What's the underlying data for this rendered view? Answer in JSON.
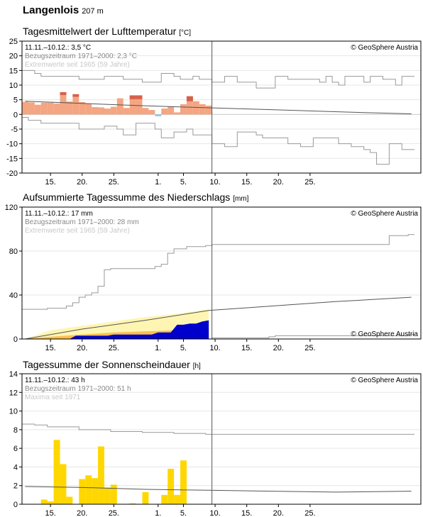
{
  "station": {
    "name": "Langenlois",
    "altitude": "207 m"
  },
  "copyright": "© GeoSphere Austria",
  "x_tick_labels": [
    "15.",
    "20.",
    "25.",
    "1.",
    "5.",
    "10.",
    "15.",
    "20.",
    "25."
  ],
  "chart_data": [
    {
      "id": "temperature",
      "type": "bar",
      "title": "Tagesmittelwert der Lufttemperatur",
      "unit": "[°C]",
      "ylim": [
        -20,
        25
      ],
      "yticks": [
        -20,
        -15,
        -10,
        -5,
        0,
        5,
        10,
        15,
        20,
        25
      ],
      "summary": "11.11.–10.12.: 3,5 °C",
      "reference": "Bezugszeitraum 1971–2000: 2,3 °C",
      "extremes": "Extremwerte seit 1965 (59 Jahre)",
      "colors": {
        "above": "#f4a582",
        "below": "#92c5de",
        "exceed": "#d6604d",
        "ref": "#555555",
        "extreme": "#999999"
      },
      "x": [
        11,
        12,
        13,
        14,
        15,
        16,
        17,
        18,
        19,
        20,
        21,
        22,
        23,
        24,
        25,
        26,
        27,
        28,
        29,
        30,
        31,
        32,
        33,
        34,
        35,
        36,
        37,
        38,
        39,
        40
      ],
      "values": [
        4.3,
        4.1,
        3.3,
        4.0,
        4.0,
        3.7,
        7.6,
        4.4,
        6.9,
        4.2,
        3.6,
        2.5,
        2.4,
        2.0,
        2.6,
        5.5,
        2.2,
        6.5,
        6.5,
        2.2,
        1.5,
        -0.6,
        2.0,
        2.6,
        0.7,
        3.5,
        6.2,
        4.5,
        3.5,
        3.0
      ],
      "exceed_top": [
        null,
        null,
        null,
        null,
        null,
        null,
        7.6,
        null,
        6.9,
        null,
        null,
        null,
        null,
        null,
        null,
        null,
        null,
        6.5,
        6.5,
        null,
        null,
        null,
        null,
        null,
        null,
        null,
        6.2,
        null,
        null,
        null
      ],
      "exceed_bottom": [
        null,
        null,
        null,
        null,
        null,
        null,
        6.6,
        null,
        6.0,
        null,
        null,
        null,
        null,
        null,
        null,
        null,
        null,
        5.2,
        5.2,
        null,
        null,
        null,
        null,
        null,
        null,
        null,
        4.5,
        null,
        null,
        null
      ],
      "ref_x": [
        11,
        17,
        23,
        29,
        35,
        41,
        47,
        53,
        59,
        65,
        72
      ],
      "ref_values": [
        4.5,
        4.0,
        3.5,
        3.0,
        2.6,
        2.2,
        1.8,
        1.4,
        1.0,
        0.6,
        0.2
      ],
      "max_x": [
        11,
        12,
        13,
        14,
        15,
        16,
        17,
        18,
        19,
        20,
        21,
        22,
        23,
        24,
        25,
        26,
        27,
        28,
        29,
        30,
        31,
        32,
        33,
        34,
        35,
        36,
        37,
        38,
        39,
        40,
        41,
        42,
        43,
        44,
        45,
        46,
        47,
        48,
        49,
        50,
        51,
        52,
        53,
        54,
        55,
        56,
        57,
        58,
        59,
        60,
        61,
        62,
        63,
        64,
        65,
        66,
        67,
        68,
        69,
        70,
        71,
        72
      ],
      "max_values": [
        15,
        15,
        14,
        13,
        13,
        13,
        13,
        13,
        13,
        12,
        12,
        12,
        12,
        13,
        13,
        13,
        12,
        12,
        12,
        11,
        11,
        11,
        14,
        14,
        13,
        12,
        12,
        13,
        12,
        12,
        11,
        11,
        13,
        13,
        11,
        11,
        11,
        9,
        9,
        9,
        13,
        13,
        12,
        12,
        12,
        12,
        12,
        11,
        13,
        11,
        10,
        13,
        13,
        13,
        11,
        13,
        13,
        12,
        12,
        10,
        13,
        13
      ],
      "min_x": [
        11,
        12,
        13,
        14,
        15,
        16,
        17,
        18,
        19,
        20,
        21,
        22,
        23,
        24,
        25,
        26,
        27,
        28,
        29,
        30,
        31,
        32,
        33,
        34,
        35,
        36,
        37,
        38,
        39,
        40,
        41,
        42,
        43,
        44,
        45,
        46,
        47,
        48,
        49,
        50,
        51,
        52,
        53,
        54,
        55,
        56,
        57,
        58,
        59,
        60,
        61,
        62,
        63,
        64,
        65,
        66,
        67,
        68,
        69,
        70,
        71,
        72
      ],
      "min_values": [
        -1,
        -2,
        -2,
        -3,
        -3,
        -3,
        -3,
        -3,
        -3,
        -5,
        -5,
        -5,
        -5,
        -4,
        -4,
        -5,
        -7,
        -7,
        -3,
        -3,
        -3,
        -5,
        -8,
        -8,
        -6,
        -6,
        -5,
        -7,
        -7,
        -7,
        -10,
        -10,
        -11,
        -11,
        -6,
        -6,
        -6,
        -7,
        -8,
        -8,
        -8,
        -8,
        -10,
        -10,
        -11,
        -11,
        -8,
        -8,
        -8,
        -8,
        -10,
        -10,
        -11,
        -11,
        -12,
        -13,
        -17,
        -17,
        -10,
        -10,
        -12,
        -12
      ]
    },
    {
      "id": "precipitation",
      "type": "area",
      "title": "Aufsummierte Tagessumme des Niederschlags",
      "unit": "[mm]",
      "ylim": [
        0,
        120
      ],
      "yticks": [
        0,
        40,
        80,
        120
      ],
      "summary": "11.11.–10.12.: 17 mm",
      "reference": "Bezugszeitraum 1971–2000: 28 mm",
      "extremes": "Extremwerte seit 1965 (59 Jahre)",
      "colors": {
        "current": "#0000cc",
        "band_outer": "#fff5b3",
        "band_inner": "#fdbf4e",
        "ref": "#555555",
        "extreme": "#999999"
      },
      "current_x": [
        11,
        18,
        19,
        24,
        25,
        31,
        32,
        34,
        35,
        36,
        37,
        38,
        39,
        40
      ],
      "current_values": [
        0,
        0,
        3,
        3,
        4,
        4,
        6,
        6,
        13,
        13,
        14,
        14,
        16,
        17
      ],
      "band_upper_x": [
        11,
        15,
        20,
        25,
        30,
        35,
        40
      ],
      "band_upper_values": [
        0,
        8,
        12,
        16,
        20,
        23,
        27
      ],
      "band_lower_x": [
        11,
        15,
        20,
        25,
        30,
        35,
        40
      ],
      "band_lower_values": [
        0,
        2,
        4,
        6,
        7,
        8,
        9
      ],
      "ref_x": [
        11,
        20,
        30,
        40,
        50,
        60,
        72
      ],
      "ref_values": [
        0,
        9,
        17,
        26,
        30,
        34,
        38
      ],
      "max_x": [
        11,
        14,
        15,
        18,
        19,
        20,
        21,
        22,
        23,
        24,
        25,
        32,
        33,
        34,
        35,
        36,
        37,
        40,
        41,
        50,
        60,
        68,
        69,
        72
      ],
      "max_values": [
        27,
        27,
        28,
        30,
        33,
        38,
        40,
        42,
        48,
        63,
        64,
        66,
        68,
        78,
        82,
        82,
        84,
        85,
        86,
        86,
        86,
        86,
        94,
        95
      ],
      "min_x": [
        11,
        40,
        41,
        50,
        51,
        60,
        72
      ],
      "min_values": [
        0,
        0,
        1,
        2,
        3,
        3,
        4
      ]
    },
    {
      "id": "sunshine",
      "type": "bar",
      "title": "Tagessumme der Sonnenscheindauer",
      "unit": "[h]",
      "ylim": [
        0,
        14
      ],
      "yticks": [
        0,
        2,
        4,
        6,
        8,
        10,
        12,
        14
      ],
      "summary": "11.11.–10.12.: 43 h",
      "reference": "Bezugszeitraum 1971–2000: 51 h",
      "extremes": "Maxima seit 1971",
      "colors": {
        "bars": "#ffd700",
        "ref": "#555555",
        "extreme": "#999999"
      },
      "x": [
        11,
        12,
        13,
        14,
        15,
        16,
        17,
        18,
        19,
        20,
        21,
        22,
        23,
        24,
        25,
        26,
        27,
        28,
        29,
        30,
        31,
        32,
        33,
        34,
        35,
        36,
        37,
        38,
        39,
        40
      ],
      "values": [
        0,
        0,
        0,
        0.5,
        0.3,
        6.9,
        4.3,
        0.8,
        0,
        2.7,
        3.1,
        2.8,
        6.2,
        1.8,
        2.1,
        0,
        0,
        0.1,
        0,
        1.3,
        0,
        0,
        1.0,
        3.8,
        1.0,
        4.7,
        0,
        0,
        0,
        0
      ],
      "ref_x": [
        11,
        20,
        30,
        40,
        50,
        60,
        72
      ],
      "ref_values": [
        1.9,
        1.8,
        1.6,
        1.5,
        1.4,
        1.3,
        1.4
      ],
      "max_x": [
        11,
        13,
        15,
        20,
        25,
        30,
        35,
        40,
        50,
        60,
        72
      ],
      "max_values": [
        8.6,
        8.5,
        8.3,
        8.0,
        7.8,
        7.7,
        7.6,
        7.5,
        7.5,
        7.5,
        7.5
      ]
    }
  ]
}
